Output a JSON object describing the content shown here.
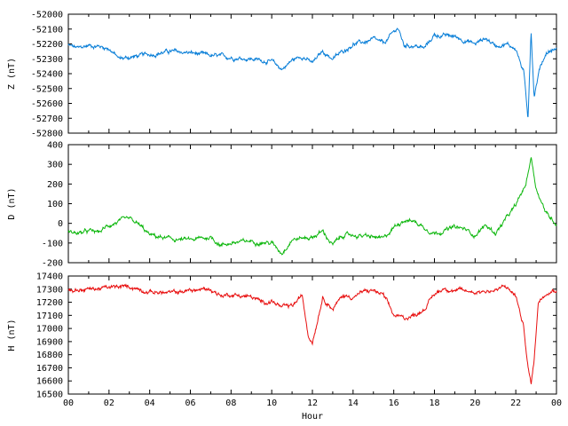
{
  "chart_data": [
    {
      "type": "line",
      "ylabel": "Z (nT)",
      "ylim": [
        -52800,
        -52000
      ],
      "yticks": [
        -52800,
        -52700,
        -52600,
        -52500,
        -52400,
        -52300,
        -52200,
        -52100,
        -52000
      ],
      "xlim": [
        0,
        24
      ],
      "series": [
        {
          "color": "#0a7fd8",
          "points": [
            [
              0,
              -52210
            ],
            [
              0.5,
              -52230
            ],
            [
              1,
              -52210
            ],
            [
              1.5,
              -52215
            ],
            [
              2,
              -52230
            ],
            [
              2.5,
              -52300
            ],
            [
              3,
              -52290
            ],
            [
              3.5,
              -52280
            ],
            [
              4,
              -52270
            ],
            [
              5,
              -52250
            ],
            [
              6,
              -52260
            ],
            [
              7,
              -52280
            ],
            [
              8,
              -52290
            ],
            [
              9,
              -52300
            ],
            [
              10,
              -52320
            ],
            [
              10.5,
              -52370
            ],
            [
              11,
              -52310
            ],
            [
              11.5,
              -52280
            ],
            [
              12,
              -52330
            ],
            [
              12.5,
              -52250
            ],
            [
              13,
              -52300
            ],
            [
              13.5,
              -52250
            ],
            [
              14,
              -52200
            ],
            [
              14.5,
              -52190
            ],
            [
              15,
              -52170
            ],
            [
              15.5,
              -52200
            ],
            [
              16,
              -52120
            ],
            [
              16.2,
              -52090
            ],
            [
              16.5,
              -52210
            ],
            [
              17,
              -52210
            ],
            [
              17.5,
              -52230
            ],
            [
              18,
              -52140
            ],
            [
              19,
              -52150
            ],
            [
              20,
              -52200
            ],
            [
              20.5,
              -52160
            ],
            [
              21,
              -52210
            ],
            [
              21.5,
              -52200
            ],
            [
              22,
              -52230
            ],
            [
              22.4,
              -52400
            ],
            [
              22.6,
              -52700
            ],
            [
              22.75,
              -52100
            ],
            [
              22.9,
              -52550
            ],
            [
              23.2,
              -52350
            ],
            [
              23.5,
              -52260
            ],
            [
              24,
              -52230
            ]
          ]
        }
      ]
    },
    {
      "type": "line",
      "ylabel": "D (nT)",
      "ylim": [
        -200,
        400
      ],
      "yticks": [
        -200,
        -100,
        0,
        100,
        200,
        300,
        400
      ],
      "xlim": [
        0,
        24
      ],
      "series": [
        {
          "color": "#10b810",
          "points": [
            [
              0,
              -40
            ],
            [
              0.5,
              -50
            ],
            [
              1,
              -40
            ],
            [
              1.5,
              -45
            ],
            [
              2,
              -10
            ],
            [
              2.5,
              10
            ],
            [
              3,
              20
            ],
            [
              3.5,
              -10
            ],
            [
              4,
              -60
            ],
            [
              5,
              -80
            ],
            [
              6,
              -85
            ],
            [
              7,
              -70
            ],
            [
              7.5,
              -110
            ],
            [
              8,
              -100
            ],
            [
              9,
              -90
            ],
            [
              10,
              -100
            ],
            [
              10.5,
              -150
            ],
            [
              11,
              -80
            ],
            [
              12,
              -70
            ],
            [
              12.5,
              -40
            ],
            [
              13,
              -110
            ],
            [
              13.5,
              -60
            ],
            [
              14,
              -60
            ],
            [
              15,
              -70
            ],
            [
              15.5,
              -80
            ],
            [
              16,
              -20
            ],
            [
              16.5,
              20
            ],
            [
              17,
              10
            ],
            [
              18,
              -50
            ],
            [
              19,
              -20
            ],
            [
              19.5,
              -30
            ],
            [
              20,
              -60
            ],
            [
              20.5,
              -10
            ],
            [
              21,
              -50
            ],
            [
              21.5,
              20
            ],
            [
              22,
              90
            ],
            [
              22.5,
              200
            ],
            [
              22.75,
              340
            ],
            [
              23,
              180
            ],
            [
              23.5,
              50
            ],
            [
              24,
              0
            ]
          ]
        }
      ]
    },
    {
      "type": "line",
      "ylabel": "H (nT)",
      "xlabel": "Hour",
      "ylim": [
        16500,
        17400
      ],
      "yticks": [
        16500,
        16600,
        16700,
        16800,
        16900,
        17000,
        17100,
        17200,
        17300,
        17400
      ],
      "xlim": [
        0,
        24
      ],
      "xticks": [
        "00",
        "02",
        "04",
        "06",
        "08",
        "10",
        "12",
        "14",
        "16",
        "18",
        "20",
        "22",
        "00"
      ],
      "series": [
        {
          "color": "#e80f0f",
          "points": [
            [
              0,
              17290
            ],
            [
              1,
              17300
            ],
            [
              2,
              17310
            ],
            [
              3,
              17320
            ],
            [
              4,
              17280
            ],
            [
              5,
              17270
            ],
            [
              6,
              17290
            ],
            [
              7,
              17300
            ],
            [
              7.5,
              17250
            ],
            [
              8,
              17260
            ],
            [
              9,
              17240
            ],
            [
              9.5,
              17200
            ],
            [
              10,
              17210
            ],
            [
              10.5,
              17160
            ],
            [
              11,
              17170
            ],
            [
              11.5,
              17250
            ],
            [
              11.8,
              16950
            ],
            [
              12,
              16900
            ],
            [
              12.3,
              17100
            ],
            [
              12.5,
              17240
            ],
            [
              13,
              17150
            ],
            [
              13.5,
              17250
            ],
            [
              14,
              17240
            ],
            [
              14.5,
              17280
            ],
            [
              15,
              17290
            ],
            [
              15.5,
              17250
            ],
            [
              16,
              17100
            ],
            [
              16.5,
              17080
            ],
            [
              17,
              17100
            ],
            [
              17.5,
              17150
            ],
            [
              18,
              17260
            ],
            [
              18.5,
              17310
            ],
            [
              19,
              17290
            ],
            [
              20,
              17280
            ],
            [
              21,
              17290
            ],
            [
              21.5,
              17320
            ],
            [
              22,
              17250
            ],
            [
              22.4,
              17000
            ],
            [
              22.6,
              16700
            ],
            [
              22.75,
              16580
            ],
            [
              22.9,
              16750
            ],
            [
              23.1,
              17200
            ],
            [
              23.5,
              17280
            ],
            [
              24,
              17300
            ]
          ]
        }
      ]
    }
  ]
}
